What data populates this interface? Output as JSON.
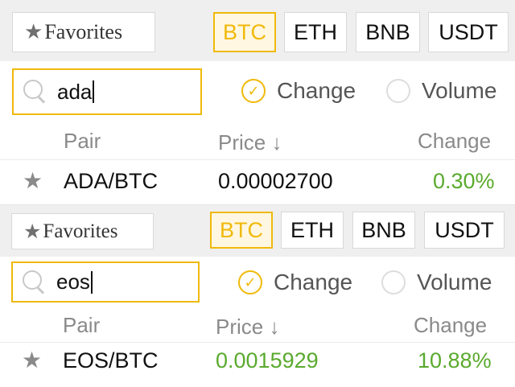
{
  "panels": [
    {
      "favorites_label": "Favorites",
      "tabs": [
        "BTC",
        "ETH",
        "BNB",
        "USDT"
      ],
      "active_tab": "BTC",
      "search": {
        "value": "ada"
      },
      "filters": {
        "change": "Change",
        "volume": "Volume",
        "selected": "Change"
      },
      "columns": {
        "pair": "Pair",
        "price": "Price",
        "change": "Change"
      },
      "sort_indicator": "↓",
      "rows": [
        {
          "pair": "ADA/BTC",
          "price": "0.00002700",
          "change": "0.30%"
        }
      ]
    },
    {
      "favorites_label": "Favorites",
      "tabs": [
        "BTC",
        "ETH",
        "BNB",
        "USDT"
      ],
      "active_tab": "BTC",
      "search": {
        "value": "eos"
      },
      "filters": {
        "change": "Change",
        "volume": "Volume",
        "selected": "Change"
      },
      "columns": {
        "pair": "Pair",
        "price": "Price",
        "change": "Change"
      },
      "sort_indicator": "↓",
      "rows": [
        {
          "pair": "EOS/BTC",
          "price": "0.0015929",
          "change": "10.88%"
        }
      ]
    }
  ],
  "colors": {
    "accent": "#f0b90b",
    "positive": "#5aaa2e",
    "muted": "#8a8a8a"
  }
}
